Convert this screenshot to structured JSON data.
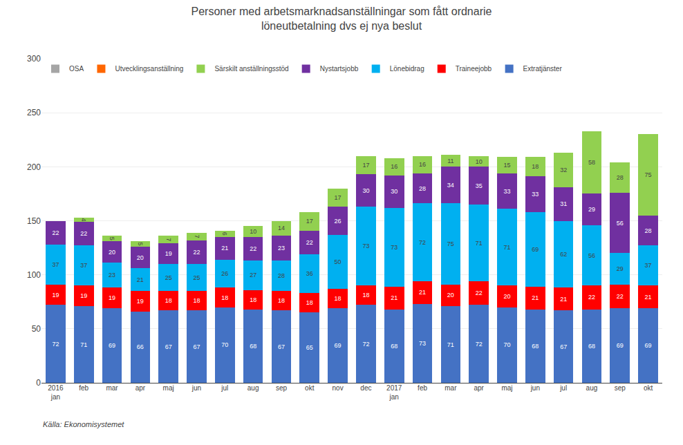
{
  "chart_data": {
    "type": "bar",
    "stacked": true,
    "title": "Personer med arbetsmarknadsanställningar som fått ordnarie\nlöneutbetalning dvs ej nya beslut",
    "annotations": [
      "Källa: Ekonomisystemet"
    ],
    "categories": [
      "2016\njan",
      "feb",
      "mar",
      "apr",
      "maj",
      "jun",
      "jul",
      "aug",
      "sep",
      "okt",
      "nov",
      "dec",
      "2017\njan",
      "feb",
      "mar",
      "apr",
      "maj",
      "jun",
      "jul",
      "aug",
      "sep",
      "okt"
    ],
    "series": [
      {
        "name": "Extratjänster",
        "color": "#4472C4",
        "values": [
          72,
          71,
          69,
          66,
          67,
          67,
          70,
          68,
          67,
          65,
          69,
          72,
          68,
          73,
          71,
          72,
          70,
          68,
          67,
          68,
          69,
          69
        ]
      },
      {
        "name": "Traineejobb",
        "color": "#FF0000",
        "values": [
          19,
          19,
          19,
          19,
          18,
          18,
          18,
          18,
          18,
          18,
          18,
          18,
          21,
          21,
          20,
          22,
          20,
          21,
          21,
          22,
          22,
          21
        ]
      },
      {
        "name": "Lönebidrag",
        "color": "#00B0F0",
        "values": [
          37,
          37,
          23,
          21,
          25,
          25,
          26,
          27,
          28,
          36,
          50,
          73,
          73,
          72,
          75,
          71,
          71,
          69,
          62,
          56,
          29,
          37
        ]
      },
      {
        "name": "Nystartsjobb",
        "color": "#7030A0",
        "values": [
          22,
          22,
          20,
          20,
          19,
          22,
          21,
          22,
          23,
          22,
          26,
          30,
          30,
          28,
          34,
          35,
          33,
          33,
          31,
          29,
          56,
          28
        ]
      },
      {
        "name": "Särskilt anställningsstöd",
        "color": "#92D050",
        "values": [
          0,
          4,
          5,
          5,
          7,
          7,
          6,
          10,
          14,
          17,
          17,
          17,
          16,
          16,
          11,
          10,
          15,
          18,
          32,
          58,
          28,
          75
        ]
      },
      {
        "name": "Utvecklingsanställning",
        "color": "#FF6600",
        "values": [
          0,
          0,
          0,
          0,
          0,
          0,
          0,
          0,
          0,
          0,
          0,
          0,
          0,
          0,
          0,
          0,
          0,
          0,
          0,
          0,
          0,
          0
        ]
      },
      {
        "name": "OSA",
        "color": "#A5A5A5",
        "values": [
          0,
          0,
          0,
          0,
          0,
          0,
          0,
          0,
          0,
          0,
          0,
          0,
          0,
          0,
          0,
          0,
          0,
          0,
          0,
          0,
          0,
          0
        ]
      }
    ],
    "ylim": [
      0,
      300
    ],
    "yticks": [
      0,
      50,
      100,
      150,
      200,
      250,
      300
    ],
    "grid": true,
    "legend": "upper left",
    "data_labels": true
  }
}
